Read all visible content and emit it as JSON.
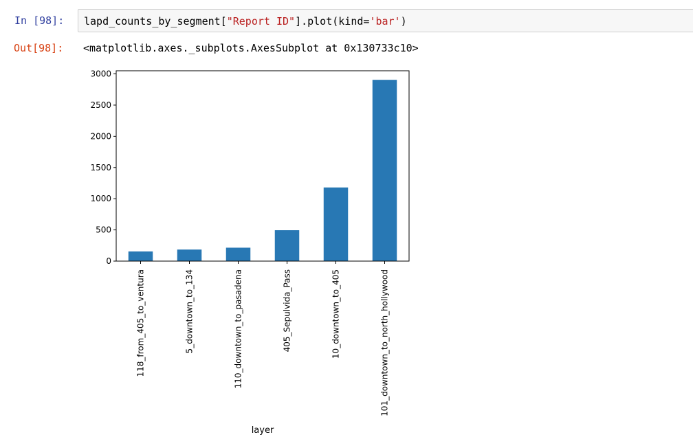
{
  "notebook": {
    "input_prompt": "In [98]:",
    "code_parts": {
      "a": "lapd_counts_by_segment[",
      "b": "\"Report ID\"",
      "c": "].plot(kind=",
      "d": "'bar'",
      "e": ")"
    },
    "output_prompt": "Out[98]:",
    "output_text": "<matplotlib.axes._subplots.AxesSubplot at 0x130733c10>"
  },
  "chart_data": {
    "type": "bar",
    "categories": [
      "118_from_405_to_ventura",
      "5_downtown_to_134",
      "110_downtown_to_pasadena",
      "405_Sepulvida_Pass",
      "10_downtown_to_405",
      "101_downtown_to_north_hollywood"
    ],
    "values": [
      155,
      185,
      215,
      495,
      1180,
      2905
    ],
    "xlabel": "layer",
    "ylabel": "",
    "ylim": [
      0,
      3050
    ],
    "yticks": [
      0,
      500,
      1000,
      1500,
      2000,
      2500,
      3000
    ],
    "bar_color": "#2878b4",
    "grid": false
  }
}
